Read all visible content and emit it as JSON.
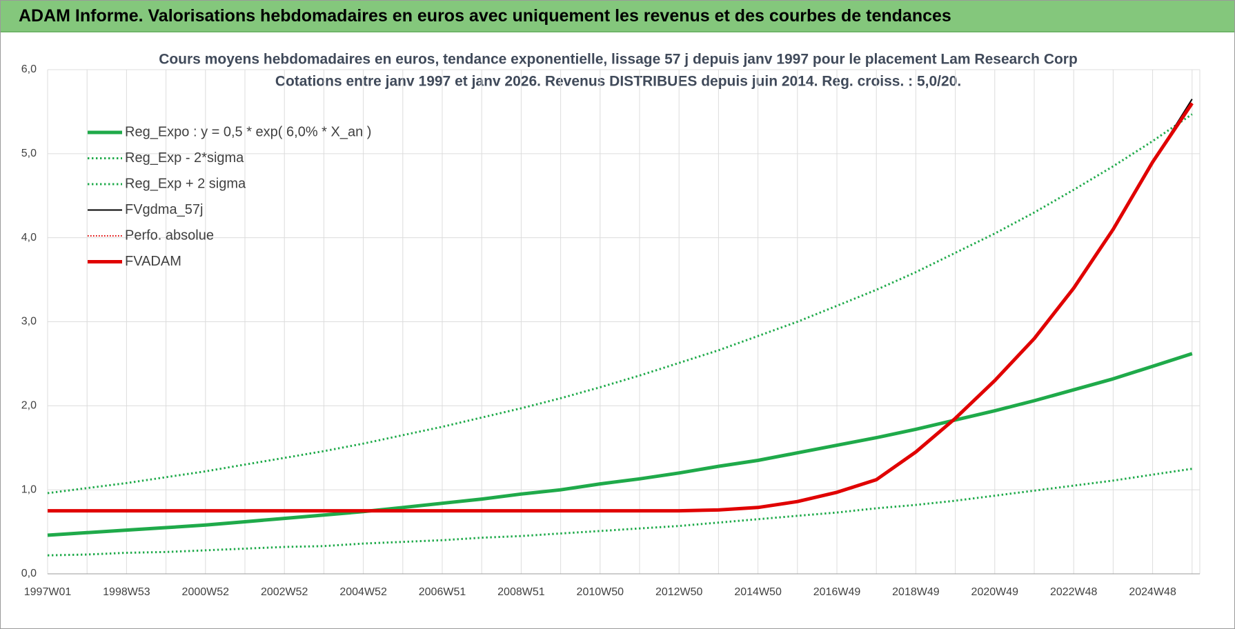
{
  "header": {
    "title": "ADAM Informe. Valorisations hebdomadaires en euros avec uniquement les revenus et des courbes de tendances"
  },
  "chart_data": {
    "type": "line",
    "title": "Cours moyens hebdomadaires en euros, tendance exponentielle, lissage 57 j depuis janv 1997 pour le placement Lam Research Corp",
    "subtitle": "Cotations entre janv 1997 et janv 2026. Revenus DISTRIBUES depuis juin 2014. Reg. croiss. : 5,0/20.",
    "categories": [
      "1997W01",
      null,
      "1998W53",
      null,
      "2000W52",
      null,
      "2002W52",
      null,
      "2004W52",
      null,
      "2006W51",
      null,
      "2008W51",
      null,
      "2010W50",
      null,
      "2012W50",
      null,
      "2014W50",
      null,
      "2016W49",
      null,
      "2018W49",
      null,
      "2020W49",
      null,
      "2022W48",
      null,
      "2024W48",
      null
    ],
    "ylim": [
      0,
      6
    ],
    "yticks": [
      {
        "value": 0,
        "label": "0,0"
      },
      {
        "value": 1,
        "label": "1,0"
      },
      {
        "value": 2,
        "label": "2,0"
      },
      {
        "value": 3,
        "label": "3,0"
      },
      {
        "value": 4,
        "label": "4,0"
      },
      {
        "value": 5,
        "label": "5,0"
      },
      {
        "value": 6,
        "label": "6,0"
      }
    ],
    "grid": true,
    "legend": "upper left",
    "series": [
      {
        "name": "Reg_Expo : y = 0,5 * exp( 6,0% *  X_an )",
        "color": "#1faa4a",
        "style": "solid",
        "width": 5,
        "values": [
          0.46,
          0.49,
          0.52,
          0.55,
          0.58,
          0.62,
          0.66,
          0.7,
          0.74,
          0.79,
          0.84,
          0.89,
          0.95,
          1.0,
          1.07,
          1.13,
          1.2,
          1.28,
          1.35,
          1.44,
          1.53,
          1.62,
          1.72,
          1.83,
          1.94,
          2.06,
          2.19,
          2.32,
          2.47,
          2.62
        ]
      },
      {
        "name": "Reg_Exp - 2*sigma",
        "color": "#1faa4a",
        "style": "dotted",
        "width": 3,
        "values": [
          0.22,
          0.23,
          0.25,
          0.26,
          0.28,
          0.3,
          0.32,
          0.33,
          0.36,
          0.38,
          0.4,
          0.43,
          0.45,
          0.48,
          0.51,
          0.54,
          0.57,
          0.61,
          0.65,
          0.69,
          0.73,
          0.78,
          0.82,
          0.87,
          0.93,
          0.99,
          1.05,
          1.11,
          1.18,
          1.25
        ]
      },
      {
        "name": "Reg_Exp + 2 sigma",
        "color": "#1faa4a",
        "style": "dotted",
        "width": 3,
        "values": [
          0.96,
          1.02,
          1.08,
          1.15,
          1.22,
          1.3,
          1.38,
          1.46,
          1.55,
          1.65,
          1.75,
          1.86,
          1.97,
          2.09,
          2.22,
          2.36,
          2.51,
          2.66,
          2.83,
          3.0,
          3.19,
          3.38,
          3.59,
          3.82,
          4.05,
          4.3,
          4.57,
          4.85,
          5.15,
          5.47
        ]
      },
      {
        "name": "FVgdma_57j",
        "color": "#000000",
        "style": "solid",
        "width": 2,
        "values": [
          0.75,
          0.75,
          0.75,
          0.75,
          0.75,
          0.75,
          0.75,
          0.75,
          0.75,
          0.75,
          0.75,
          0.75,
          0.75,
          0.75,
          0.75,
          0.75,
          0.75,
          0.76,
          0.79,
          0.86,
          0.97,
          1.12,
          1.45,
          1.85,
          2.3,
          2.8,
          3.4,
          4.1,
          4.9,
          5.65
        ]
      },
      {
        "name": "Perfo. absolue",
        "color": "#e00000",
        "style": "dotted",
        "width": 2,
        "values": [
          0.75,
          0.75,
          0.75,
          0.75,
          0.75,
          0.75,
          0.75,
          0.75,
          0.75,
          0.75,
          0.75,
          0.75,
          0.75,
          0.75,
          0.75,
          0.75,
          0.75,
          0.76,
          0.79,
          0.86,
          0.97,
          1.12,
          1.45,
          1.85,
          2.3,
          2.8,
          3.4,
          4.1,
          4.9,
          5.6
        ]
      },
      {
        "name": "FVADAM",
        "color": "#e00000",
        "style": "solid",
        "width": 5,
        "values": [
          0.75,
          0.75,
          0.75,
          0.75,
          0.75,
          0.75,
          0.75,
          0.75,
          0.75,
          0.75,
          0.75,
          0.75,
          0.75,
          0.75,
          0.75,
          0.75,
          0.75,
          0.76,
          0.79,
          0.86,
          0.97,
          1.12,
          1.45,
          1.85,
          2.3,
          2.8,
          3.4,
          4.1,
          4.9,
          5.6
        ]
      }
    ]
  }
}
